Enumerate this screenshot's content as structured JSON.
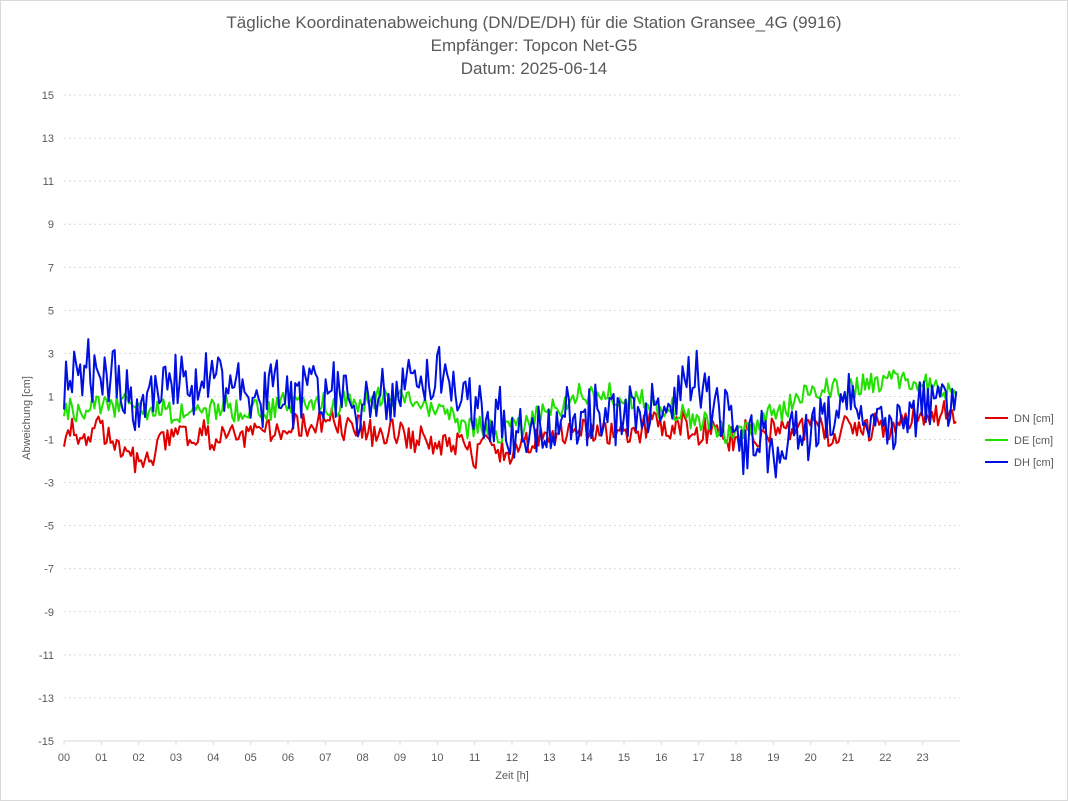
{
  "chart_data": {
    "type": "line",
    "title_lines": [
      "Tägliche Koordinatenabweichung (DN/DE/DH) für die Station Gransee_4G (9916)",
      "Empfänger: Topcon Net-G5",
      "Datum: 2025-06-14"
    ],
    "xlabel": "Zeit [h]",
    "ylabel": "Abweichung [cm]",
    "xlim": [
      0,
      24
    ],
    "ylim": [
      -15,
      15
    ],
    "x_ticks": [
      "00",
      "01",
      "02",
      "03",
      "04",
      "05",
      "06",
      "07",
      "08",
      "09",
      "10",
      "11",
      "12",
      "13",
      "14",
      "15",
      "16",
      "17",
      "18",
      "19",
      "20",
      "21",
      "22",
      "23"
    ],
    "y_ticks": [
      "15",
      "13",
      "11",
      "9",
      "7",
      "5",
      "3",
      "1",
      "-1",
      "-3",
      "-5",
      "-7",
      "-9",
      "-11",
      "-13",
      "-15"
    ],
    "grid": true,
    "legend_position": "right",
    "x": [
      0,
      1,
      2,
      3,
      4,
      5,
      6,
      7,
      8,
      9,
      10,
      11,
      12,
      13,
      14,
      15,
      16,
      17,
      18,
      19,
      20,
      21,
      22,
      23
    ],
    "series": [
      {
        "name": "DN [cm]",
        "color": "#e00000",
        "values": [
          -0.8,
          -0.6,
          -2.2,
          -0.6,
          -0.9,
          -0.7,
          -0.5,
          -0.2,
          -0.6,
          -0.8,
          -1.2,
          -1.6,
          -1.4,
          -0.8,
          -0.7,
          -0.6,
          -0.4,
          -0.5,
          -0.8,
          -0.6,
          -0.5,
          -0.7,
          -0.4,
          0.1
        ]
      },
      {
        "name": "DE [cm]",
        "color": "#22e000",
        "values": [
          0.4,
          0.6,
          0.5,
          0.3,
          0.4,
          0.5,
          0.6,
          0.7,
          0.8,
          0.9,
          0.4,
          -0.5,
          -0.6,
          0.3,
          1.2,
          0.9,
          0.6,
          -0.2,
          -0.8,
          0.2,
          1.2,
          1.4,
          1.8,
          1.4
        ]
      },
      {
        "name": "DH [cm]",
        "color": "#0010e0",
        "values": [
          1.8,
          2.2,
          1.0,
          1.5,
          1.8,
          1.2,
          0.9,
          1.4,
          0.5,
          1.6,
          2.2,
          0.4,
          -0.6,
          -0.4,
          0.3,
          0.2,
          0.6,
          1.8,
          -0.8,
          -1.5,
          -0.5,
          1.2,
          -0.6,
          0.4
        ]
      }
    ]
  }
}
